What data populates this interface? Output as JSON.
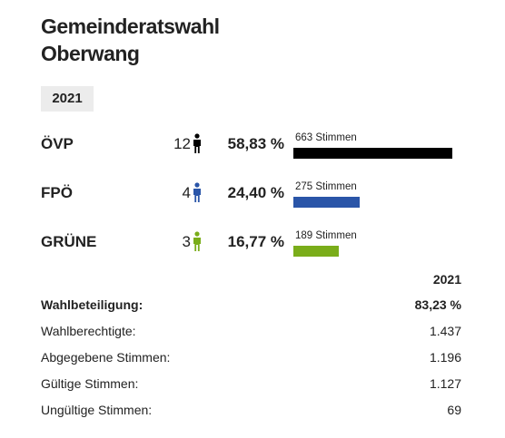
{
  "header": {
    "title": "Gemeinderatswahl",
    "place": "Oberwang",
    "year": "2021"
  },
  "parties": [
    {
      "name": "ÖVP",
      "seats": "12",
      "percent": "58,83 %",
      "votes": 663,
      "votes_label": "663 Stimmen",
      "color": "#000000"
    },
    {
      "name": "FPÖ",
      "seats": "4",
      "percent": "24,40 %",
      "votes": 275,
      "votes_label": "275 Stimmen",
      "color": "#2a55a8"
    },
    {
      "name": "GRÜNE",
      "seats": "3",
      "percent": "16,77 %",
      "votes": 189,
      "votes_label": "189 Stimmen",
      "color": "#7aad1a"
    }
  ],
  "table": {
    "header": "2021",
    "rows": [
      [
        "Wahlbeteiligung:",
        "83,23 %"
      ],
      [
        "Wahlberechtigte:",
        "1.437"
      ],
      [
        "Abgegebene Stimmen:",
        "1.196"
      ],
      [
        "Gültige Stimmen:",
        "1.127"
      ],
      [
        "Ungültige Stimmen:",
        "69"
      ]
    ]
  }
}
